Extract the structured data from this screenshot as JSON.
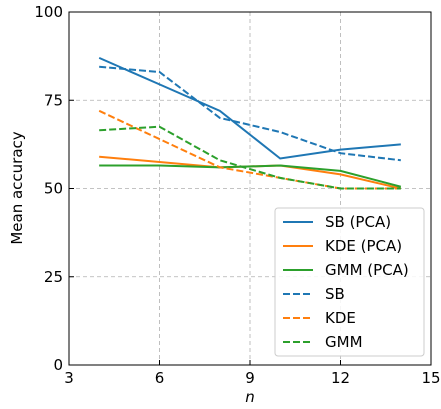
{
  "chart_data": {
    "type": "line",
    "x_label": "n",
    "y_label": "Mean accuracy",
    "x": [
      4,
      6,
      8,
      10,
      12,
      14
    ],
    "series": [
      {
        "name": "SB (PCA)",
        "color": "#1f77b4",
        "linestyle": "solid",
        "values": [
          87,
          79.5,
          72,
          58.5,
          61,
          62.5
        ]
      },
      {
        "name": "KDE (PCA)",
        "color": "#ff7f0e",
        "linestyle": "solid",
        "values": [
          59,
          57.5,
          56,
          56.5,
          54,
          50
        ]
      },
      {
        "name": "GMM (PCA)",
        "color": "#2ca02c",
        "linestyle": "solid",
        "values": [
          56.5,
          56.5,
          56,
          56.5,
          55,
          50.5
        ]
      },
      {
        "name": "SB",
        "color": "#1f77b4",
        "linestyle": "dashed",
        "values": [
          84.5,
          83,
          70,
          66,
          60,
          58
        ]
      },
      {
        "name": "KDE",
        "color": "#ff7f0e",
        "linestyle": "dashed",
        "values": [
          72,
          64,
          56,
          53,
          50,
          50
        ]
      },
      {
        "name": "GMM",
        "color": "#2ca02c",
        "linestyle": "dashed",
        "values": [
          66.5,
          67.5,
          58,
          53,
          50,
          50
        ]
      }
    ],
    "xlim": [
      3,
      15
    ],
    "xticks": [
      3,
      6,
      9,
      12,
      15
    ],
    "ylim": [
      0,
      100
    ],
    "yticks": [
      0,
      25,
      50,
      75,
      100
    ],
    "grid": true,
    "legend_position": "lower right"
  }
}
